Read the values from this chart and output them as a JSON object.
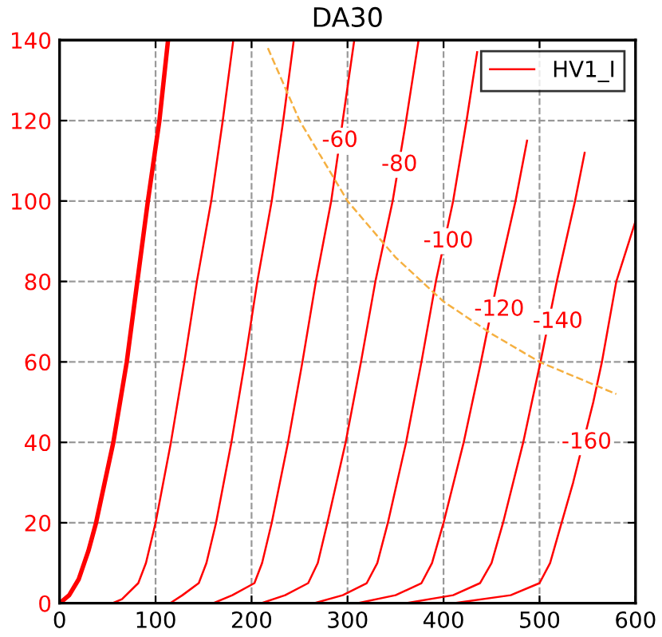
{
  "chart_data": {
    "type": "line",
    "title": "DA30",
    "xlim": [
      0,
      600
    ],
    "ylim": [
      0,
      140
    ],
    "xticks": [
      0,
      100,
      200,
      300,
      400,
      500,
      600
    ],
    "yticks": [
      0,
      20,
      40,
      60,
      80,
      100,
      120,
      140
    ],
    "grid": true,
    "legend": "top right",
    "line_style": "solid",
    "marker": "none",
    "series": [
      {
        "color": "#ff0000",
        "x": [
          0,
          10,
          20,
          30,
          38,
          56,
          70,
          81,
          92,
          104,
          113
        ],
        "values": [
          0,
          2,
          6,
          13,
          20,
          40,
          60,
          80,
          100,
          120,
          140
        ]
      },
      {
        "name": "HV1_I",
        "color": "#ff0000",
        "x": [
          55,
          65,
          82,
          90,
          100,
          116,
          130,
          143,
          158,
          170,
          181
        ],
        "values": [
          0,
          1,
          5,
          10,
          20,
          40,
          60,
          80,
          100,
          120,
          140
        ]
      },
      {
        "color": "#ff0000",
        "x": [
          115,
          128,
          145,
          153,
          163,
          179,
          193,
          206,
          221,
          233,
          244
        ],
        "values": [
          0,
          2,
          5,
          10,
          20,
          40,
          60,
          80,
          100,
          120,
          140
        ]
      },
      {
        "color": "#ff0000",
        "x": [
          160,
          180,
          203,
          211,
          221,
          238,
          253,
          267,
          283,
          295,
          307
        ],
        "values": [
          0,
          2,
          5,
          10,
          20,
          40,
          60,
          80,
          100,
          120,
          140
        ]
      },
      {
        "color": "#ff0000",
        "x": [
          210,
          235,
          259,
          269,
          279,
          298,
          314,
          329,
          347,
          361,
          374
        ],
        "values": [
          0,
          2,
          5,
          10,
          20,
          40,
          60,
          80,
          100,
          120,
          140
        ]
      },
      {
        "color": "#ff0000",
        "x": [
          265,
          295,
          320,
          331,
          342,
          361,
          377,
          392,
          410,
          424,
          435
        ],
        "values": [
          0,
          2,
          5,
          10,
          20,
          40,
          60,
          80,
          100,
          120,
          137
        ]
      },
      {
        "color": "#ff0000",
        "x": [
          310,
          350,
          377,
          388,
          400,
          421,
          439,
          456,
          475,
          487
        ],
        "values": [
          0,
          2,
          5,
          10,
          20,
          40,
          60,
          80,
          100,
          115
        ]
      },
      {
        "color": "#ff0000",
        "x": [
          360,
          410,
          438,
          450,
          462,
          483,
          501,
          518,
          537,
          547
        ],
        "values": [
          0,
          2,
          5,
          10,
          20,
          40,
          60,
          80,
          100,
          112
        ]
      },
      {
        "color": "#ff0000",
        "x": [
          410,
          470,
          500,
          511,
          523,
          535,
          556,
          565,
          580,
          600
        ],
        "values": [
          0,
          2,
          5,
          10,
          20,
          30,
          50,
          60,
          80,
          95
        ]
      },
      {
        "color": "#f5b041",
        "line_style": "dashed",
        "x": [
          217,
          250,
          300,
          350,
          400,
          450,
          500,
          550,
          580
        ],
        "values": [
          138,
          120,
          100,
          86,
          75,
          67,
          60,
          55,
          52
        ]
      }
    ],
    "annotations": [
      {
        "text": "-60",
        "x": 292,
        "y": 115
      },
      {
        "text": "-80",
        "x": 354,
        "y": 109
      },
      {
        "text": "-100",
        "x": 405,
        "y": 90
      },
      {
        "text": "-120",
        "x": 458,
        "y": 73
      },
      {
        "text": "-140",
        "x": 519,
        "y": 70
      },
      {
        "text": "-160",
        "x": 549,
        "y": 40
      }
    ]
  }
}
